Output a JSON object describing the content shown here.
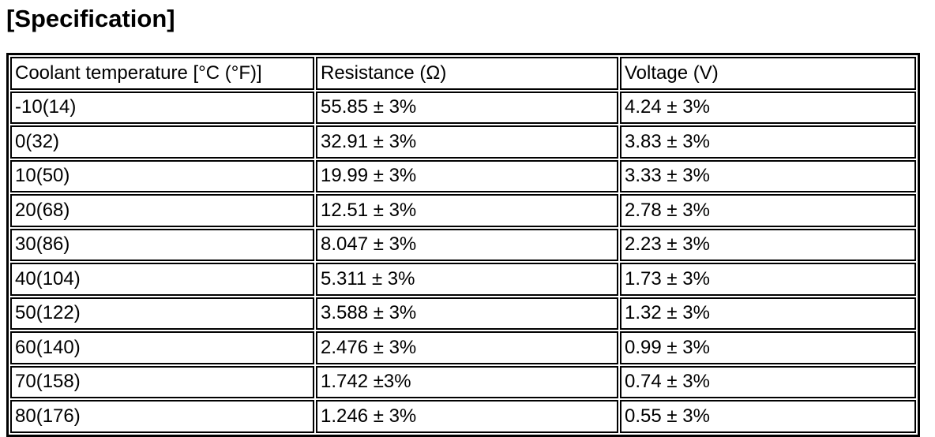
{
  "header": {
    "title": "[Specification]"
  },
  "table": {
    "columns": [
      "Coolant temperature [°C (°F)]",
      "Resistance (Ω)",
      "Voltage (V)"
    ],
    "rows": [
      [
        "-10(14)",
        "55.85 ± 3%",
        "4.24 ± 3%"
      ],
      [
        "0(32)",
        "32.91 ± 3%",
        "3.83 ± 3%"
      ],
      [
        "10(50)",
        "19.99 ± 3%",
        "3.33 ± 3%"
      ],
      [
        "20(68)",
        "12.51 ± 3%",
        "2.78 ± 3%"
      ],
      [
        "30(86)",
        "8.047 ± 3%",
        "2.23 ± 3%"
      ],
      [
        "40(104)",
        "5.311 ± 3%",
        "1.73 ± 3%"
      ],
      [
        "50(122)",
        "3.588 ± 3%",
        "1.32 ± 3%"
      ],
      [
        "60(140)",
        "2.476 ± 3%",
        "0.99 ± 3%"
      ],
      [
        "70(158)",
        "1.742 ±3%",
        "0.74 ± 3%"
      ],
      [
        "80(176)",
        "1.246 ± 3%",
        "0.55 ± 3%"
      ]
    ]
  }
}
